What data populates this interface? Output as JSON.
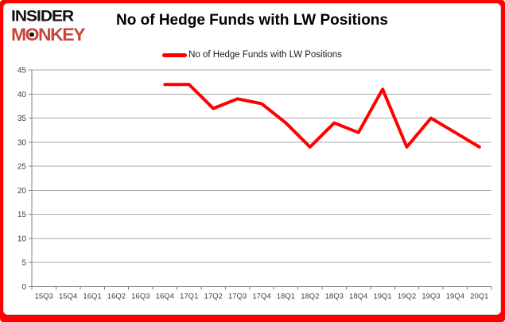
{
  "brand": {
    "line1": "INSIDER",
    "line2": "MONKEY",
    "monkey_color": "#c8473c"
  },
  "header": {
    "title": "No of Hedge Funds with LW Positions"
  },
  "legend": {
    "label": "No of Hedge Funds with LW Positions",
    "marker_color": "#ff0000"
  },
  "chart_data": {
    "type": "line",
    "title": "No of Hedge Funds with LW Positions",
    "xlabel": "",
    "ylabel": "",
    "categories": [
      "15Q3",
      "15Q4",
      "16Q1",
      "16Q2",
      "16Q3",
      "16Q4",
      "17Q1",
      "17Q2",
      "17Q3",
      "17Q4",
      "18Q1",
      "18Q2",
      "18Q3",
      "18Q4",
      "19Q1",
      "19Q2",
      "19Q3",
      "19Q4",
      "20Q1"
    ],
    "series": [
      {
        "name": "No of Hedge Funds with LW Positions",
        "color": "#ff0000",
        "values": [
          null,
          null,
          null,
          null,
          null,
          42,
          42,
          37,
          39,
          38,
          34,
          29,
          34,
          32,
          41,
          29,
          35,
          32,
          29
        ]
      }
    ],
    "ylim": [
      0,
      45
    ],
    "ytick_step": 5,
    "grid": true,
    "legend_position": "top-center"
  },
  "colors": {
    "frame": "#fe0000",
    "background": "#ffffff",
    "gridline": "#a6a6a6",
    "axis": "#808080",
    "tick_label": "#3f3f3f",
    "line": "#ff0000"
  }
}
